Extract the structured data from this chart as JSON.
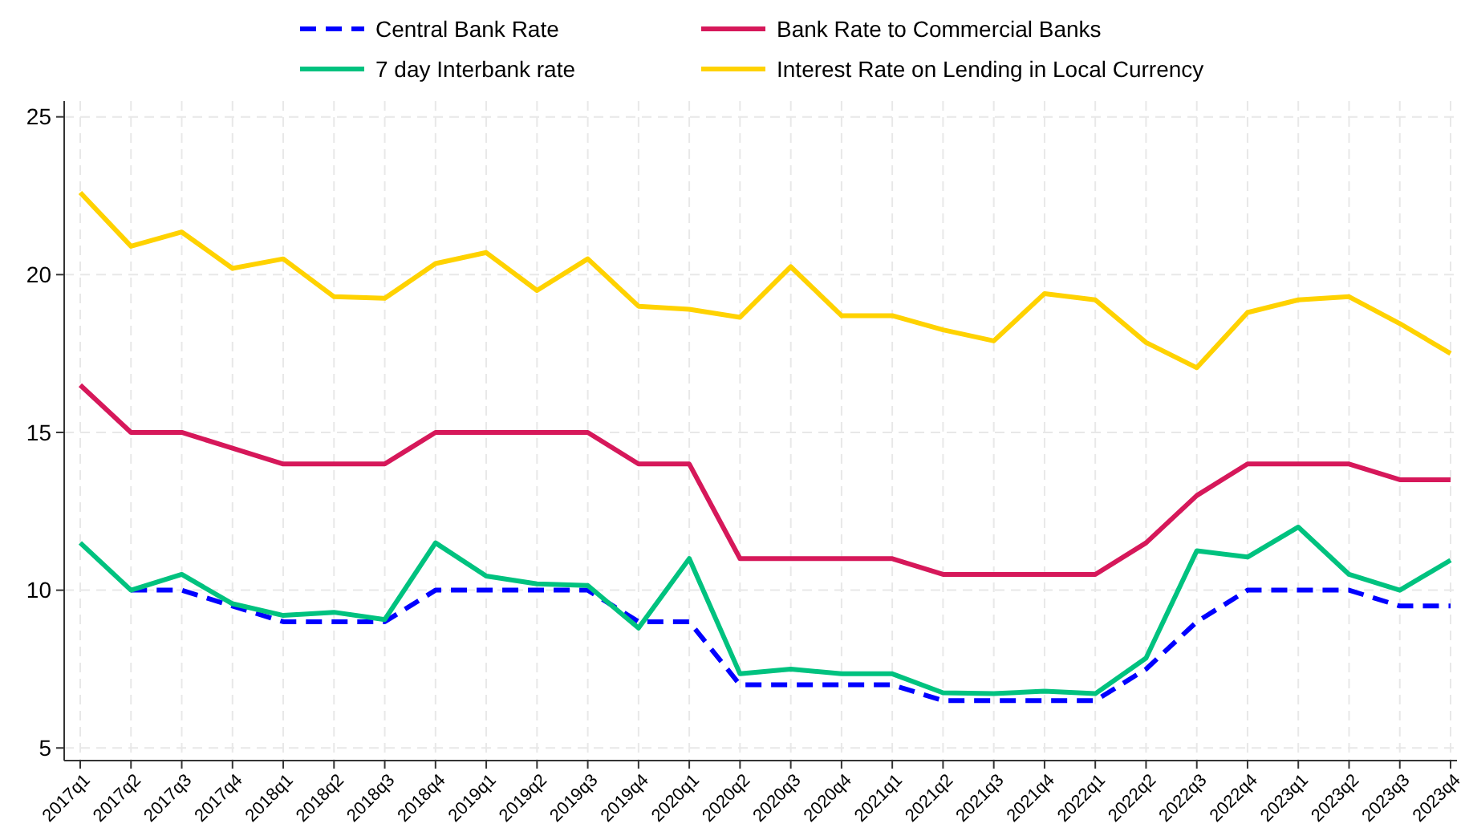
{
  "chart_data": {
    "type": "line",
    "categories": [
      "2017q1",
      "2017q2",
      "2017q3",
      "2017q4",
      "2018q1",
      "2018q2",
      "2018q3",
      "2018q4",
      "2019q1",
      "2019q2",
      "2019q3",
      "2019q4",
      "2020q1",
      "2020q2",
      "2020q3",
      "2020q4",
      "2021q1",
      "2021q2",
      "2021q3",
      "2021q4",
      "2022q1",
      "2022q2",
      "2022q3",
      "2022q4",
      "2023q1",
      "2023q2",
      "2023q3",
      "2023q4"
    ],
    "series": [
      {
        "name": "Central Bank Rate",
        "color": "#0000ff",
        "line_style": "dashed",
        "values": [
          null,
          10,
          10,
          9.5,
          9,
          9,
          9,
          10,
          10,
          10,
          10,
          9,
          9,
          7,
          7,
          7,
          7,
          6.5,
          6.5,
          6.5,
          6.5,
          7.5,
          9,
          10,
          10,
          10,
          9.5,
          9.5
        ]
      },
      {
        "name": "Bank Rate to Commercial Banks",
        "color": "#d6185a",
        "values": [
          16.5,
          15,
          15,
          14.5,
          14,
          14,
          14,
          15,
          15,
          15,
          15,
          14,
          14,
          11,
          11,
          11,
          11,
          10.5,
          10.5,
          10.5,
          10.5,
          11.5,
          13,
          14,
          14,
          14,
          13.5,
          13.5
        ]
      },
      {
        "name": "7 day Interbank rate",
        "color": "#00c27f",
        "values": [
          11.5,
          10,
          10.5,
          9.57,
          9.2,
          9.3,
          9.07,
          11.5,
          10.45,
          10.2,
          10.15,
          8.8,
          11,
          7.35,
          7.5,
          7.35,
          7.35,
          6.75,
          6.72,
          6.8,
          6.72,
          7.85,
          11.25,
          11.05,
          12,
          10.5,
          10,
          10.95
        ]
      },
      {
        "name": "Interest Rate on Lending in Local Currency",
        "color": "#ffd200",
        "values": [
          22.6,
          20.9,
          21.35,
          20.2,
          20.5,
          19.3,
          19.25,
          20.35,
          20.7,
          19.5,
          20.5,
          19,
          18.9,
          18.65,
          20.25,
          18.7,
          18.7,
          18.25,
          17.9,
          19.4,
          19.2,
          17.85,
          17.05,
          18.8,
          19.2,
          19.3,
          18.45,
          17.5
        ]
      }
    ],
    "ylim": [
      4.6,
      25.5
    ],
    "yticks": [
      5,
      10,
      15,
      20,
      25
    ],
    "grid": true,
    "legend": "top",
    "line_style": "solid",
    "marker": "none"
  }
}
